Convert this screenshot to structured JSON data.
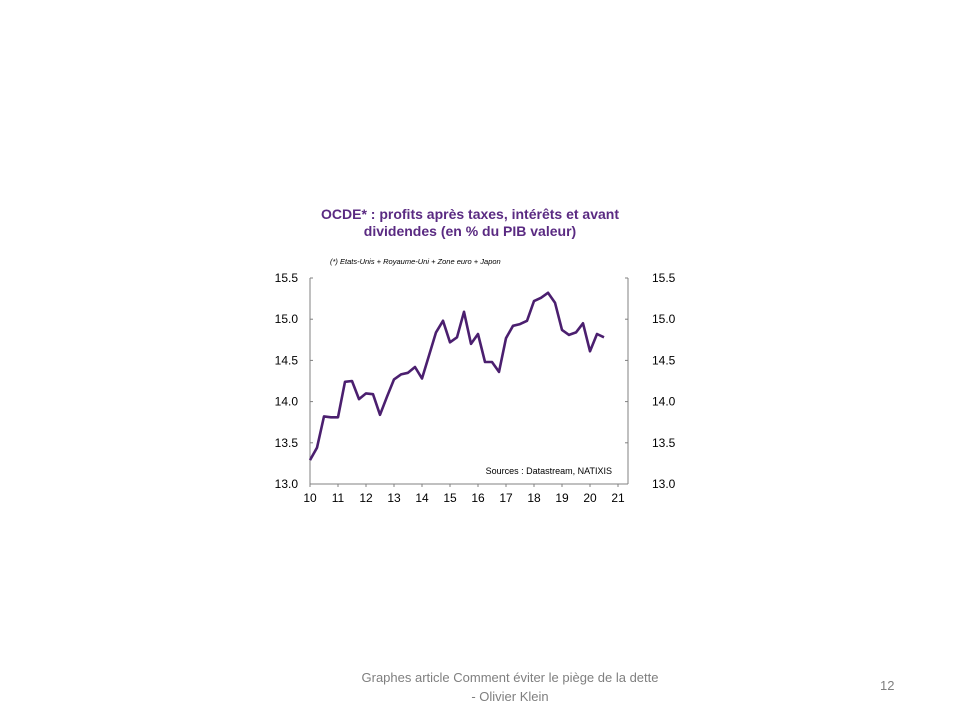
{
  "chart_data": {
    "type": "line",
    "title": "OCDE* : profits après taxes, intérêts et avant dividendes (en % du PIB valeur)",
    "title_line1": "OCDE* : profits après taxes, intérêts et avant",
    "title_line2": "dividendes (en % du PIB valeur)",
    "note": "(*) Etats-Unis + Royaume-Uni + Zone euro + Japon",
    "source": "Sources : Datastream, NATIXIS",
    "xlim": [
      10,
      21
    ],
    "ylim": [
      13.0,
      15.5
    ],
    "x_ticks": [
      "10",
      "11",
      "12",
      "13",
      "14",
      "15",
      "16",
      "17",
      "18",
      "19",
      "20",
      "21"
    ],
    "y_ticks": [
      "13.0",
      "13.5",
      "14.0",
      "14.5",
      "15.0",
      "15.5"
    ],
    "color": "#4b1f6f",
    "x": [
      10,
      10.25,
      10.5,
      10.75,
      11,
      11.25,
      11.5,
      11.75,
      12,
      12.25,
      12.5,
      12.75,
      13,
      13.25,
      13.5,
      13.75,
      14,
      14.25,
      14.5,
      14.75,
      15,
      15.25,
      15.5,
      15.75,
      16,
      16.25,
      16.5,
      16.75,
      17,
      17.25,
      17.5,
      17.75,
      18,
      18.25,
      18.5,
      18.75,
      19,
      19.25,
      19.5,
      19.75,
      20,
      20.25,
      20.5
    ],
    "values": [
      13.29,
      13.44,
      13.82,
      13.81,
      13.81,
      14.24,
      14.25,
      14.03,
      14.1,
      14.09,
      13.84,
      14.06,
      14.27,
      14.33,
      14.35,
      14.42,
      14.28,
      14.56,
      14.84,
      14.98,
      14.72,
      14.78,
      15.09,
      14.7,
      14.82,
      14.48,
      14.48,
      14.36,
      14.77,
      14.92,
      14.94,
      14.98,
      15.22,
      15.26,
      15.32,
      15.2,
      14.87,
      14.81,
      14.84,
      14.95,
      14.61,
      14.82,
      14.78
    ]
  },
  "footer": {
    "line1": "Graphes article Comment  éviter le piège de la dette",
    "line2": "- Olivier Klein",
    "page": "12"
  }
}
